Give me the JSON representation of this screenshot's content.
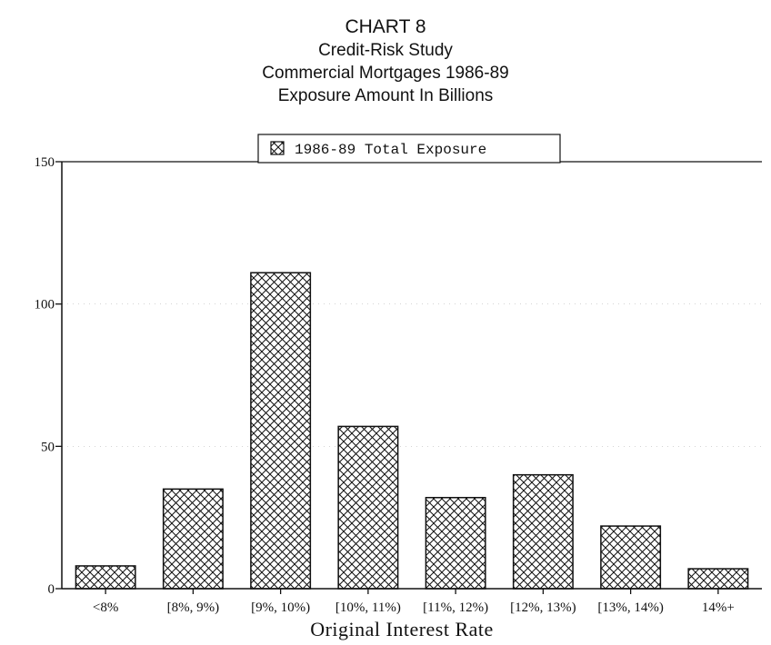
{
  "titles": {
    "line1": "CHART 8",
    "line2": "Credit-Risk Study",
    "line3": "Commercial Mortgages 1986-89",
    "line4": "Exposure Amount In Billions"
  },
  "chart_data": {
    "type": "bar",
    "title": "CHART 8",
    "subtitle": "Credit-Risk Study / Commercial Mortgages 1986-89 / Exposure Amount In Billions",
    "xlabel": "Original Interest Rate",
    "ylabel": "",
    "ylim": [
      0,
      150
    ],
    "yticks": [
      0,
      50,
      100,
      150
    ],
    "categories": [
      "<8%",
      "[8%, 9%)",
      "[9%, 10%)",
      "[10%, 11%)",
      "[11%, 12%)",
      "[12%, 13%)",
      "[13%, 14%)",
      "14%+"
    ],
    "series": [
      {
        "name": "1986-89 Total Exposure",
        "values": [
          8,
          35,
          111,
          57,
          32,
          40,
          22,
          7
        ]
      }
    ],
    "legend_position": "top-center",
    "grid": true,
    "fill_pattern": "crosshatch"
  }
}
